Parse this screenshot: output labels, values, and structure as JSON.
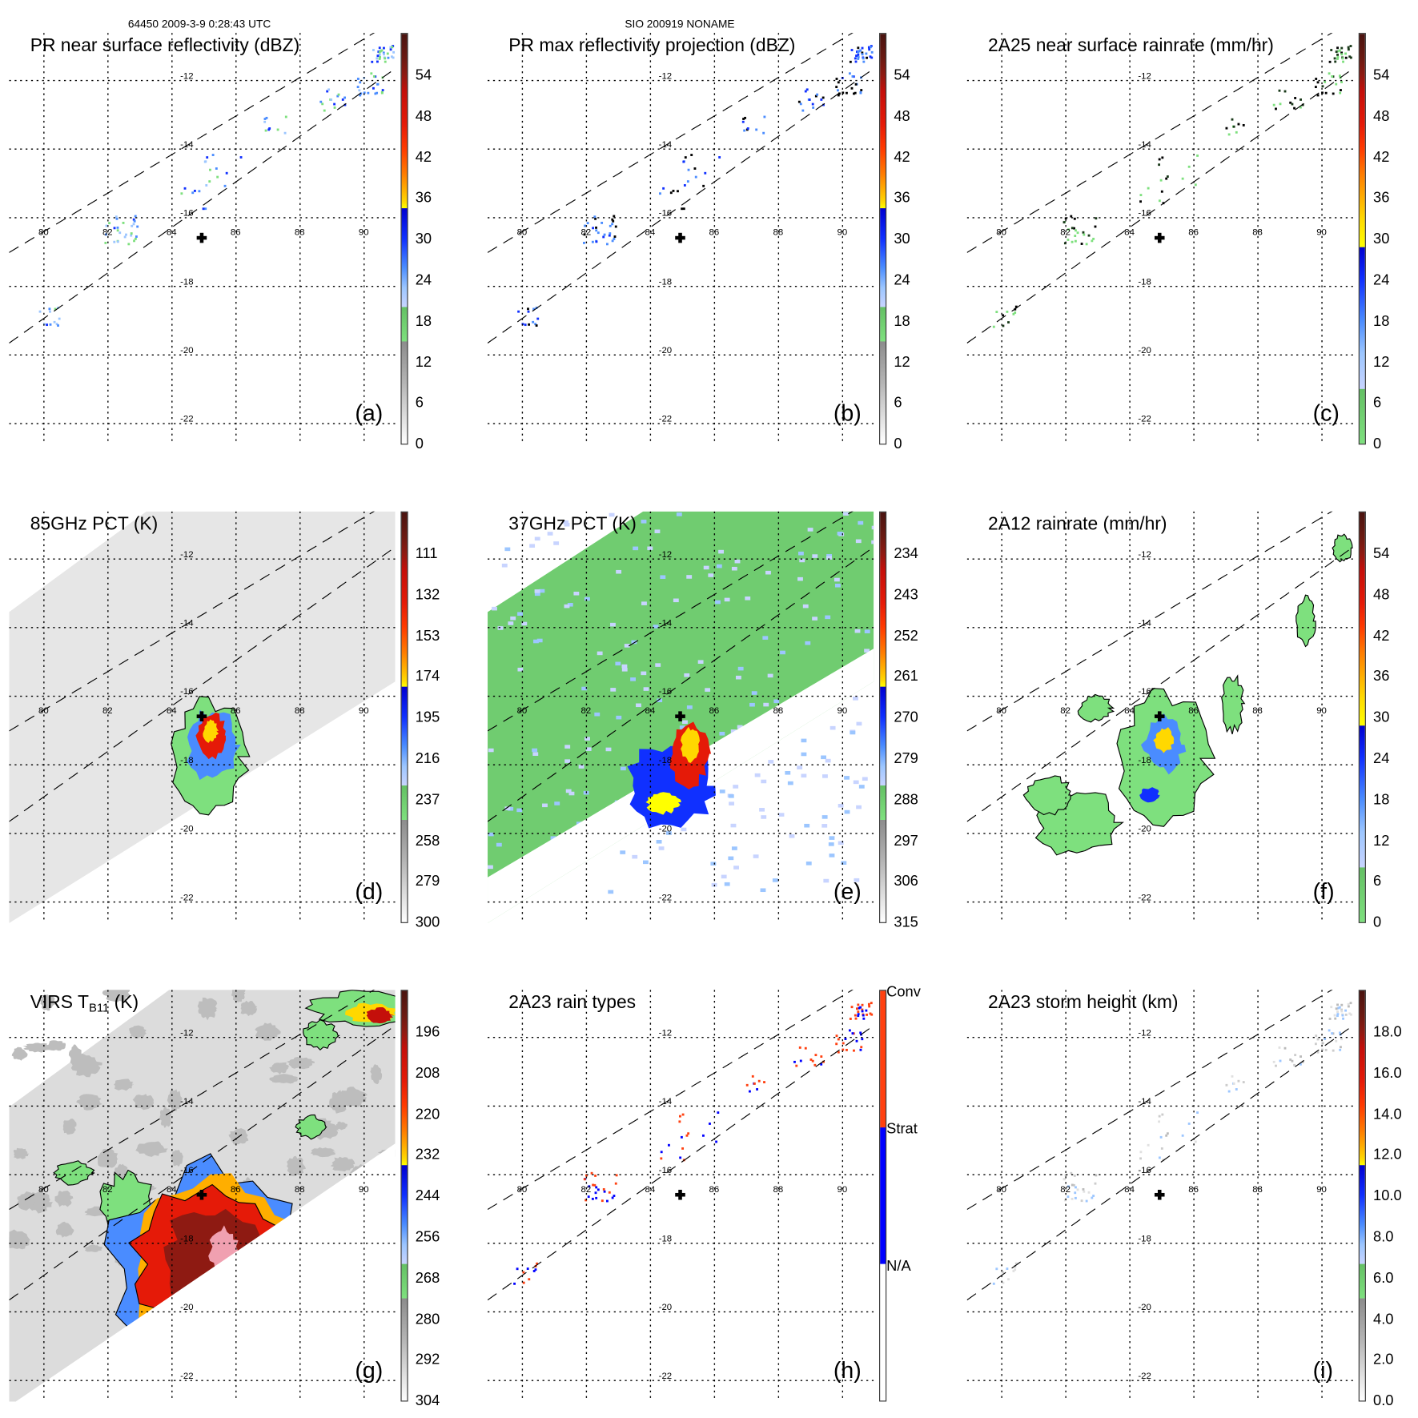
{
  "header": {
    "left": "64450 2009-3-9 0:28:43 UTC",
    "center": "SIO 200919 NONAME"
  },
  "map_axes": {
    "lon_labels": [
      "80",
      "82",
      "84",
      "86",
      "88",
      "90"
    ],
    "lat_labels": [
      "-12",
      "-14",
      "-16",
      "-18",
      "-20",
      "-22"
    ],
    "center_marker": "plus-icon"
  },
  "panels": [
    {
      "id": "a",
      "title": "PR near surface reflectivity (dBZ)",
      "letter": "(a)",
      "kind": "pr",
      "cbar": "std",
      "labels": [
        "54",
        "48",
        "42",
        "36",
        "30",
        "24",
        "18",
        "12",
        "6",
        "0"
      ]
    },
    {
      "id": "b",
      "title": "PR max reflectivity projection (dBZ)",
      "letter": "(b)",
      "kind": "prmax",
      "cbar": "std",
      "labels": [
        "54",
        "48",
        "42",
        "36",
        "30",
        "24",
        "18",
        "12",
        "6",
        "0"
      ]
    },
    {
      "id": "c",
      "title": "2A25 near surface rainrate (mm/hr)",
      "letter": "(c)",
      "kind": "rain25",
      "cbar": "rain",
      "labels": [
        "54",
        "48",
        "42",
        "36",
        "30",
        "24",
        "18",
        "12",
        "6",
        "0"
      ]
    },
    {
      "id": "d",
      "title": "85GHz PCT (K)",
      "letter": "(d)",
      "kind": "pct85",
      "cbar": "std",
      "labels": [
        "111",
        "132",
        "153",
        "174",
        "195",
        "216",
        "237",
        "258",
        "279",
        "300"
      ]
    },
    {
      "id": "e",
      "title": "37GHz PCT (K)",
      "letter": "(e)",
      "kind": "pct37",
      "cbar": "std",
      "labels": [
        "234",
        "243",
        "252",
        "261",
        "270",
        "279",
        "288",
        "297",
        "306",
        "315"
      ]
    },
    {
      "id": "f",
      "title": "2A12 rainrate (mm/hr)",
      "letter": "(f)",
      "kind": "rain12",
      "cbar": "rain",
      "labels": [
        "54",
        "48",
        "42",
        "36",
        "30",
        "24",
        "18",
        "12",
        "6",
        "0"
      ]
    },
    {
      "id": "g",
      "title": "VIRS T",
      "title_sub": "B11",
      "title_tail": " (K)",
      "letter": "(g)",
      "kind": "virs",
      "cbar": "std",
      "labels": [
        "196",
        "208",
        "220",
        "232",
        "244",
        "256",
        "268",
        "280",
        "292",
        "304"
      ]
    },
    {
      "id": "h",
      "title": "2A23 rain types",
      "letter": "(h)",
      "kind": "types",
      "cbar": "type",
      "labels": [
        "Conv",
        "Strat",
        "N/A"
      ]
    },
    {
      "id": "i",
      "title": "2A23 storm height (km)",
      "letter": "(i)",
      "kind": "height",
      "cbar": "std",
      "labels": [
        "18.0",
        "16.0",
        "14.0",
        "12.0",
        "10.0",
        "8.0",
        "6.0",
        "4.0",
        "2.0",
        "0.0"
      ]
    }
  ]
}
